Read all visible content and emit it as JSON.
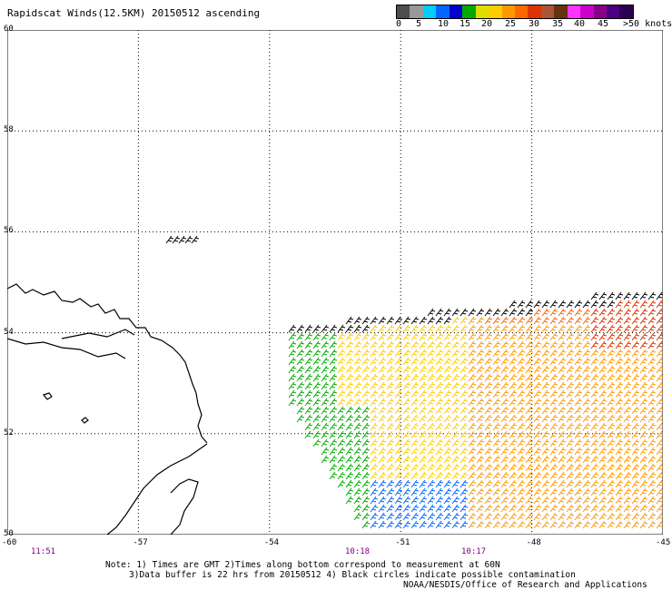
{
  "title": "Rapidscat Winds(12.5KM) 20150512 ascending",
  "legend": {
    "colors": [
      "#4d4d4d",
      "#999999",
      "#00ccff",
      "#0066ff",
      "#0000cc",
      "#00aa00",
      "#dddd00",
      "#ffcc00",
      "#ff9900",
      "#ff6600",
      "#dd3300",
      "#aa5533",
      "#663311",
      "#ff33ff",
      "#cc00cc",
      "#880088",
      "#4b0082",
      "#2b0052"
    ],
    "labels": [
      "0",
      "5",
      "10",
      "15",
      "20",
      "25",
      "30",
      "35",
      "40",
      "45",
      ">50 knots"
    ]
  },
  "axes": {
    "lat_labels": [
      "60",
      "58",
      "56",
      "54",
      "52",
      "50"
    ],
    "lon_labels": [
      "-60",
      "-57",
      "-54",
      "-51",
      "-48",
      "-45"
    ]
  },
  "times": [
    "11:51",
    "10:18",
    "10:17"
  ],
  "notes": {
    "line1": "Note: 1) Times are GMT 2)Times along bottom correspond to measurement at 60N",
    "line2": "3)Data buffer is 22 hrs from 20150512 4) Black circles indicate possible contamination",
    "line3": "NOAA/NESDIS/Office of Research and Applications"
  },
  "chart_data": {
    "type": "map",
    "title": "Rapidscat Winds(12.5KM) 20150512 ascending",
    "lat_range": [
      50,
      60
    ],
    "lon_range": [
      -60,
      -45
    ],
    "lat_ticks": [
      60,
      58,
      56,
      54,
      52,
      50
    ],
    "lon_ticks": [
      -60,
      -57,
      -54,
      -51,
      -48,
      -45
    ],
    "wind_speed_bins_knots": [
      0,
      5,
      10,
      15,
      20,
      25,
      30,
      35,
      40,
      45,
      50
    ],
    "grid": true
  }
}
